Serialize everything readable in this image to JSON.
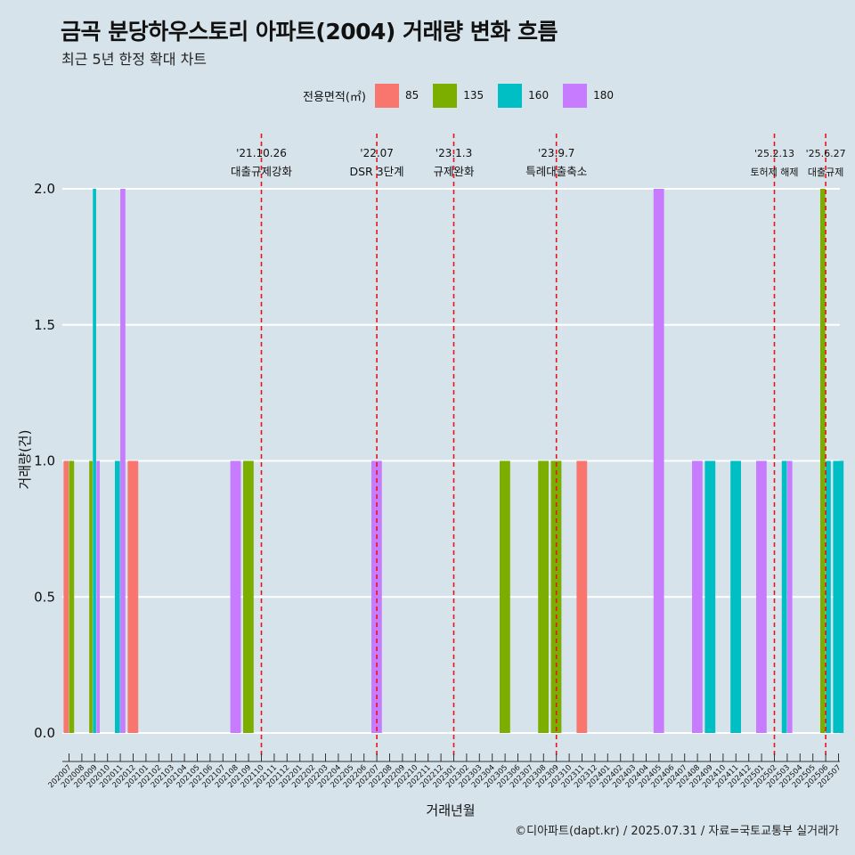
{
  "title": "금곡 분당하우스토리 아파트(2004) 거래량 변화 흐름",
  "subtitle": "최근 5년 한정 확대 차트",
  "caption": "©디아파트(dapt.kr) / 2025.07.31 / 자료=국토교통부 실거래가",
  "legend": {
    "title": "전용면적(㎡)",
    "items": [
      {
        "label": "85",
        "color": "#f8766d"
      },
      {
        "label": "135",
        "color": "#7cae00"
      },
      {
        "label": "160",
        "color": "#00bfc4"
      },
      {
        "label": "180",
        "color": "#c77cff"
      }
    ]
  },
  "chart_data": {
    "type": "bar",
    "xlabel": "거래년월",
    "ylabel": "거래량(건)",
    "ylim": [
      0,
      2
    ],
    "yticks": [
      "0.0",
      "0.5",
      "1.0",
      "1.5",
      "2.0"
    ],
    "categories": [
      "202007",
      "202008",
      "202009",
      "202010",
      "202011",
      "202012",
      "202101",
      "202102",
      "202103",
      "202104",
      "202105",
      "202106",
      "202107",
      "202108",
      "202109",
      "202110",
      "202111",
      "202112",
      "202201",
      "202202",
      "202203",
      "202204",
      "202205",
      "202206",
      "202207",
      "202208",
      "202209",
      "202210",
      "202211",
      "202212",
      "202301",
      "202302",
      "202303",
      "202304",
      "202305",
      "202306",
      "202307",
      "202308",
      "202309",
      "202310",
      "202311",
      "202312",
      "202401",
      "202402",
      "202403",
      "202404",
      "202405",
      "202406",
      "202407",
      "202408",
      "202409",
      "202410",
      "202411",
      "202412",
      "202501",
      "202502",
      "202503",
      "202504",
      "202505",
      "202506",
      "202507"
    ],
    "series": [
      {
        "name": "85",
        "color": "#f8766d",
        "points": [
          {
            "x": "202007",
            "y": 1
          },
          {
            "x": "202012",
            "y": 1
          },
          {
            "x": "202311",
            "y": 1
          }
        ]
      },
      {
        "name": "135",
        "color": "#7cae00",
        "points": [
          {
            "x": "202007",
            "y": 1
          },
          {
            "x": "202009",
            "y": 1
          },
          {
            "x": "202109",
            "y": 1
          },
          {
            "x": "202305",
            "y": 1
          },
          {
            "x": "202308",
            "y": 1
          },
          {
            "x": "202309",
            "y": 1
          },
          {
            "x": "202506",
            "y": 2
          }
        ]
      },
      {
        "name": "160",
        "color": "#00bfc4",
        "points": [
          {
            "x": "202009",
            "y": 2
          },
          {
            "x": "202011",
            "y": 1
          },
          {
            "x": "202409",
            "y": 1
          },
          {
            "x": "202411",
            "y": 1
          },
          {
            "x": "202503",
            "y": 1
          },
          {
            "x": "202506",
            "y": 1
          },
          {
            "x": "202507",
            "y": 1
          }
        ]
      },
      {
        "name": "180",
        "color": "#c77cff",
        "points": [
          {
            "x": "202009",
            "y": 1
          },
          {
            "x": "202011",
            "y": 2
          },
          {
            "x": "202108",
            "y": 1
          },
          {
            "x": "202207",
            "y": 1
          },
          {
            "x": "202405",
            "y": 2
          },
          {
            "x": "202408",
            "y": 1
          },
          {
            "x": "202501",
            "y": 1
          },
          {
            "x": "202503",
            "y": 1
          }
        ]
      }
    ],
    "annotations": [
      {
        "x": "202110",
        "date": "'21.10.26",
        "label": "대출규제강화"
      },
      {
        "x": "202207",
        "date": "'22.07",
        "label": "DSR 3단계"
      },
      {
        "x": "202301",
        "date": "'23.1.3",
        "label": "규제완화"
      },
      {
        "x": "202309",
        "date": "'23.9.7",
        "label": "특례대출축소"
      },
      {
        "x": "202502",
        "date": "'25.2.13",
        "label": "토허제 해제"
      },
      {
        "x": "202506",
        "date": "'25.6.27",
        "label": "대출규제"
      }
    ],
    "grid": true,
    "legend_position": "top"
  }
}
